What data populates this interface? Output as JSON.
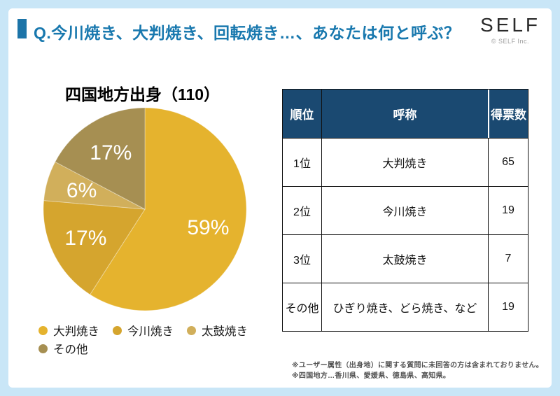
{
  "page": {
    "background": "#C9E6F7",
    "card_background": "#FFFFFF"
  },
  "header": {
    "question_title": "Q.今川焼き、大判焼き、回転焼き…、あなたは何と呼ぶ？",
    "title_color": "#1878AE",
    "marker_color": "#1C74A8",
    "logo_text": "SELF",
    "logo_copyright": "© SELF Inc."
  },
  "chart_data": {
    "type": "pie",
    "title": "四国地方出身（110）",
    "total_responses": 110,
    "start_angle_deg": 0,
    "direction": "clockwise",
    "legend_position": "bottom",
    "slices": [
      {
        "label": "大判焼き",
        "percent": 59,
        "votes": 65,
        "color": "#E5B32E"
      },
      {
        "label": "今川焼き",
        "percent": 17,
        "votes": 19,
        "color": "#D5A52E"
      },
      {
        "label": "太鼓焼き",
        "percent": 6,
        "votes": 7,
        "color": "#D1AF5B"
      },
      {
        "label": "その他",
        "percent": 17,
        "votes": 19,
        "color": "#A68F52"
      }
    ]
  },
  "table": {
    "header_bg": "#1A4971",
    "headers": [
      "順位",
      "呼称",
      "得票数"
    ],
    "rows": [
      {
        "rank": "1位",
        "name": "大判焼き",
        "votes": "65"
      },
      {
        "rank": "2位",
        "name": "今川焼き",
        "votes": "19"
      },
      {
        "rank": "3位",
        "name": "太鼓焼き",
        "votes": "7"
      },
      {
        "rank": "その他",
        "name": "ひぎり焼き、どら焼き、など",
        "votes": "19"
      }
    ]
  },
  "footnotes": {
    "line1": "※ユーザー属性（出身地）に関する質問に未回答の方は含まれておりません。",
    "line2": "※四国地方…香川県、愛媛県、徳島県、高知県。"
  }
}
